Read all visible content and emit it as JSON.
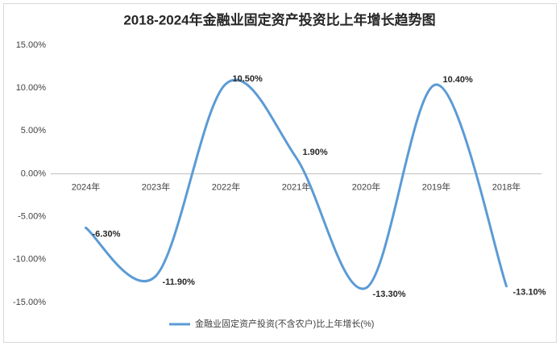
{
  "chart_data": {
    "type": "line",
    "title": "2018-2024年金融业固定资产投资比上年增长趋势图",
    "categories": [
      "2024年",
      "2023年",
      "2022年",
      "2021年",
      "2020年",
      "2019年",
      "2018年"
    ],
    "series": [
      {
        "name": "金融业固定资产投资(不含农户)比上年增长(%)",
        "color": "#5b9bd5",
        "values": [
          -6.3,
          -11.9,
          10.5,
          1.9,
          -13.3,
          10.4,
          -13.1
        ],
        "value_labels": [
          "-6.30%",
          "-11.90%",
          "10.50%",
          "1.90%",
          "-13.30%",
          "10.40%",
          "-13.10%"
        ]
      }
    ],
    "ylim": [
      -15,
      15
    ],
    "yticks": [
      {
        "value": 15,
        "label": "15.00%"
      },
      {
        "value": 10,
        "label": "10.00%"
      },
      {
        "value": 5,
        "label": "5.00%"
      },
      {
        "value": 0,
        "label": "0.00%"
      },
      {
        "value": -5,
        "label": "-5.00%"
      },
      {
        "value": -10,
        "label": "-10.00%"
      },
      {
        "value": -15,
        "label": "-15.00%"
      }
    ],
    "smooth": true,
    "grid": false,
    "legend": "bottom"
  }
}
